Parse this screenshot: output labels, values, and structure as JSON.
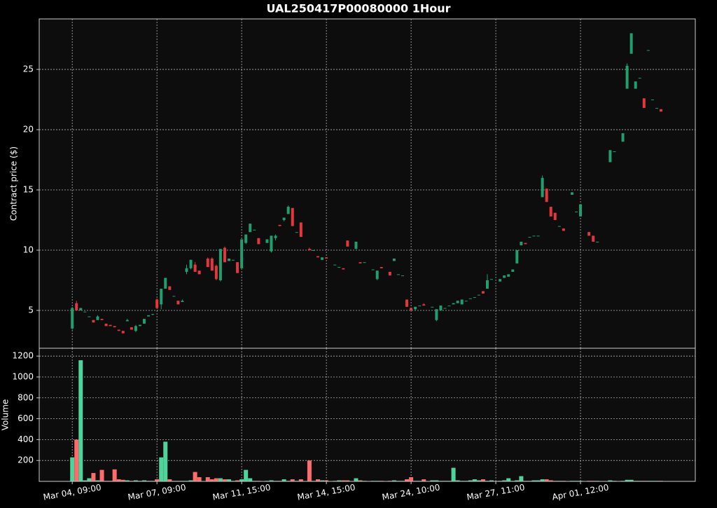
{
  "chart_data": {
    "type": "candlestick",
    "title": "UAL250417P00080000 1Hour",
    "ylabel": "Contract price ($)",
    "volume_label": "Volume",
    "up_color": "#1f9e6e",
    "down_color": "#e5363d",
    "volume_up_color": "#4fd39a",
    "volume_down_color": "#ff6b6b",
    "grid": true,
    "xlim": [
      -7.8,
      147.1
    ],
    "ylim": [
      1.86,
      29.19
    ],
    "yticks": [
      5,
      10,
      15,
      20,
      25
    ],
    "volume_ylim": [
      0,
      1275
    ],
    "volume_yticks": [
      200,
      400,
      600,
      800,
      1000,
      1200
    ],
    "categories": [
      "Mar 04, 09:00",
      null,
      null,
      null,
      null,
      null,
      null,
      null,
      null,
      null,
      null,
      null,
      null,
      null,
      null,
      null,
      null,
      null,
      null,
      null,
      "Mar 07, 09:00",
      null,
      null,
      null,
      null,
      null,
      null,
      null,
      null,
      null,
      null,
      null,
      null,
      null,
      null,
      null,
      null,
      null,
      null,
      null,
      "Mar 11, 15:00",
      null,
      null,
      null,
      null,
      null,
      null,
      null,
      null,
      null,
      null,
      null,
      null,
      null,
      null,
      null,
      null,
      null,
      null,
      null,
      "Mar 14, 15:00",
      null,
      null,
      null,
      null,
      null,
      null,
      null,
      null,
      null,
      null,
      null,
      null,
      null,
      null,
      null,
      null,
      null,
      null,
      null,
      "Mar 24, 10:00",
      null,
      null,
      null,
      null,
      null,
      null,
      null,
      null,
      null,
      null,
      null,
      null,
      null,
      null,
      null,
      null,
      null,
      null,
      null,
      "Mar 27, 11:00",
      null,
      null,
      null,
      null,
      null,
      null,
      null,
      null,
      null,
      null,
      null,
      null,
      null,
      null,
      null,
      null,
      null,
      null,
      null,
      "Apr 01, 12:00",
      null,
      null,
      null,
      null,
      null,
      null,
      null,
      null,
      null,
      null,
      null,
      null,
      null,
      null,
      null,
      null,
      null,
      null,
      null
    ],
    "open": [
      3.5,
      5.6,
      5.0,
      4.9,
      4.5,
      4.2,
      4.2,
      4.3,
      3.9,
      3.8,
      3.7,
      3.4,
      3.3,
      4.1,
      3.6,
      3.3,
      3.7,
      3.9,
      4.5,
      4.7,
      5.9,
      5.5,
      6.8,
      7.0,
      6.2,
      5.8,
      5.7,
      8.2,
      8.5,
      8.8,
      8.3,
      null,
      9.3,
      9.3,
      8.7,
      7.5,
      10.2,
      9.1,
      9.2,
      9.0,
      8.5,
      10.6,
      11.5,
      11.7,
      11.0,
      null,
      10.6,
      9.9,
      11.0,
      12.1,
      12.5,
      13.0,
      13.5,
      11.5,
      12.3,
      null,
      10.1,
      10.0,
      9.5,
      9.2,
      9.4,
      null,
      8.8,
      8.6,
      8.5,
      10.8,
      null,
      10.1,
      9.0,
      9.0,
      null,
      8.4,
      7.6,
      8.6,
      null,
      8.2,
      9.1,
      8.0,
      7.9,
      5.9,
      5.2,
      5.1,
      5.4,
      5.5,
      null,
      5.3,
      4.2,
      5.0,
      5.2,
      5.4,
      5.5,
      5.6,
      5.5,
      5.8,
      6.0,
      6.1,
      6.3,
      6.6,
      6.8,
      7.6,
      null,
      7.4,
      7.7,
      7.8,
      8.2,
      8.9,
      10.4,
      10.6,
      11.1,
      11.2,
      11.2,
      14.4,
      15.1,
      13.6,
      13.1,
      12.0,
      11.8,
      null,
      14.6,
      13.2,
      12.8,
      null,
      11.5,
      11.2,
      10.7,
      null,
      null,
      17.3,
      18.2,
      null,
      19.0,
      23.4,
      26.3,
      23.4,
      24.3,
      22.6,
      26.6,
      22.5,
      21.8,
      21.7
    ],
    "high": [
      5.3,
      5.8,
      5.2,
      4.9,
      4.5,
      4.2,
      4.6,
      4.3,
      3.9,
      3.8,
      3.7,
      3.4,
      3.3,
      4.3,
      3.6,
      3.8,
      3.8,
      4.3,
      4.6,
      4.7,
      6.0,
      6.8,
      7.7,
      7.0,
      6.2,
      5.8,
      5.9,
      8.8,
      9.2,
      9.0,
      8.3,
      null,
      9.4,
      9.4,
      8.8,
      10.1,
      10.3,
      9.3,
      9.2,
      9.0,
      10.9,
      11.3,
      12.2,
      11.7,
      11.0,
      null,
      10.9,
      11.2,
      11.3,
      12.1,
      12.7,
      13.7,
      13.5,
      11.5,
      12.3,
      null,
      10.2,
      10.0,
      9.5,
      9.4,
      9.4,
      null,
      8.8,
      8.6,
      8.5,
      10.8,
      null,
      10.7,
      9.0,
      9.0,
      null,
      8.4,
      8.3,
      8.6,
      null,
      8.2,
      9.3,
      8.0,
      7.9,
      5.9,
      5.2,
      5.3,
      5.4,
      5.6,
      null,
      5.3,
      5.1,
      5.4,
      5.2,
      5.4,
      5.6,
      5.8,
      5.9,
      5.8,
      6.0,
      6.1,
      6.3,
      6.6,
      8.0,
      7.6,
      null,
      7.6,
      7.9,
      8.0,
      8.4,
      10.0,
      10.7,
      10.6,
      11.1,
      11.2,
      11.2,
      16.2,
      15.1,
      13.6,
      13.1,
      12.0,
      11.8,
      null,
      14.8,
      13.2,
      13.8,
      null,
      11.5,
      11.2,
      10.7,
      null,
      null,
      18.3,
      18.2,
      null,
      19.7,
      25.5,
      28.0,
      24.0,
      24.3,
      22.6,
      26.6,
      22.5,
      21.8,
      21.7
    ],
    "low": [
      3.4,
      5.0,
      5.0,
      4.9,
      4.5,
      4.0,
      4.2,
      4.2,
      3.7,
      3.7,
      3.6,
      3.3,
      3.1,
      4.1,
      3.4,
      3.2,
      3.7,
      3.9,
      4.5,
      4.6,
      5.2,
      5.1,
      6.8,
      6.7,
      6.2,
      5.5,
      5.7,
      8.0,
      8.4,
      8.2,
      8.0,
      null,
      8.6,
      8.3,
      7.5,
      7.4,
      9.0,
      9.1,
      9.2,
      8.1,
      8.4,
      10.5,
      11.5,
      11.7,
      10.5,
      null,
      10.6,
      9.8,
      10.8,
      12.0,
      12.4,
      13.0,
      12.0,
      11.5,
      11.1,
      null,
      10.0,
      10.0,
      9.4,
      9.2,
      9.3,
      null,
      8.8,
      8.6,
      8.4,
      10.3,
      null,
      10.1,
      8.9,
      9.0,
      null,
      8.4,
      7.5,
      8.5,
      null,
      7.9,
      9.1,
      8.0,
      7.9,
      5.3,
      5.0,
      5.0,
      5.4,
      5.4,
      null,
      5.3,
      4.1,
      5.0,
      5.2,
      5.4,
      5.5,
      5.6,
      5.5,
      5.8,
      6.0,
      6.1,
      6.3,
      6.4,
      6.8,
      7.6,
      null,
      7.4,
      7.7,
      7.8,
      8.2,
      8.9,
      10.4,
      10.5,
      11.1,
      11.2,
      11.2,
      14.4,
      14.0,
      12.8,
      12.5,
      12.0,
      11.6,
      null,
      14.6,
      13.2,
      12.8,
      null,
      11.2,
      10.7,
      10.7,
      null,
      null,
      17.3,
      18.2,
      null,
      19.0,
      23.4,
      26.3,
      23.4,
      24.3,
      21.8,
      26.6,
      22.5,
      21.8,
      21.5
    ],
    "close": [
      5.2,
      5.0,
      5.2,
      4.9,
      4.5,
      4.0,
      4.5,
      4.2,
      3.7,
      3.7,
      3.6,
      3.3,
      3.1,
      4.2,
      3.4,
      3.7,
      3.8,
      4.3,
      4.6,
      4.7,
      5.2,
      6.8,
      7.7,
      6.7,
      6.2,
      5.5,
      5.8,
      8.5,
      9.2,
      8.2,
      8.0,
      null,
      8.6,
      8.3,
      7.6,
      10.1,
      9.0,
      9.3,
      9.2,
      8.1,
      10.9,
      11.3,
      12.2,
      11.7,
      10.5,
      null,
      10.9,
      11.2,
      11.2,
      12.0,
      12.7,
      13.6,
      12.0,
      11.5,
      11.1,
      null,
      10.0,
      10.0,
      9.4,
      9.4,
      9.3,
      null,
      8.8,
      8.6,
      8.4,
      10.3,
      null,
      10.7,
      8.9,
      9.0,
      null,
      8.4,
      8.3,
      8.5,
      null,
      7.9,
      9.3,
      8.0,
      7.9,
      5.3,
      5.0,
      5.3,
      5.4,
      5.4,
      null,
      5.3,
      5.1,
      5.4,
      5.2,
      5.4,
      5.6,
      5.8,
      5.9,
      5.8,
      6.0,
      6.1,
      6.3,
      6.4,
      7.5,
      7.6,
      null,
      7.6,
      7.9,
      8.0,
      8.4,
      10.0,
      10.7,
      10.5,
      11.1,
      11.2,
      11.2,
      16.0,
      14.0,
      12.8,
      12.5,
      12.0,
      11.6,
      null,
      14.8,
      13.2,
      13.8,
      null,
      11.2,
      10.7,
      10.7,
      null,
      null,
      18.3,
      18.2,
      null,
      19.7,
      25.3,
      28.0,
      24.0,
      24.3,
      21.8,
      26.6,
      22.5,
      21.8,
      21.5
    ],
    "volume": [
      230,
      400,
      1160,
      10,
      30,
      80,
      10,
      110,
      5,
      5,
      115,
      20,
      15,
      10,
      5,
      10,
      5,
      10,
      5,
      5,
      20,
      230,
      380,
      20,
      5,
      5,
      5,
      5,
      10,
      90,
      40,
      null,
      40,
      20,
      30,
      30,
      20,
      20,
      5,
      10,
      20,
      110,
      30,
      5,
      5,
      null,
      5,
      10,
      5,
      5,
      20,
      5,
      20,
      5,
      20,
      null,
      200,
      5,
      20,
      10,
      10,
      null,
      5,
      10,
      10,
      10,
      null,
      30,
      10,
      5,
      null,
      5,
      5,
      5,
      null,
      5,
      10,
      5,
      5,
      20,
      40,
      5,
      5,
      20,
      null,
      10,
      10,
      5,
      5,
      5,
      130,
      10,
      5,
      5,
      10,
      20,
      10,
      20,
      5,
      10,
      null,
      5,
      10,
      30,
      5,
      10,
      50,
      5,
      5,
      10,
      10,
      20,
      20,
      10,
      5,
      5,
      5,
      null,
      5,
      5,
      5,
      null,
      5,
      5,
      5,
      null,
      null,
      10,
      5,
      null,
      5,
      15,
      15,
      5,
      5,
      5,
      5,
      5,
      5,
      5
    ]
  }
}
